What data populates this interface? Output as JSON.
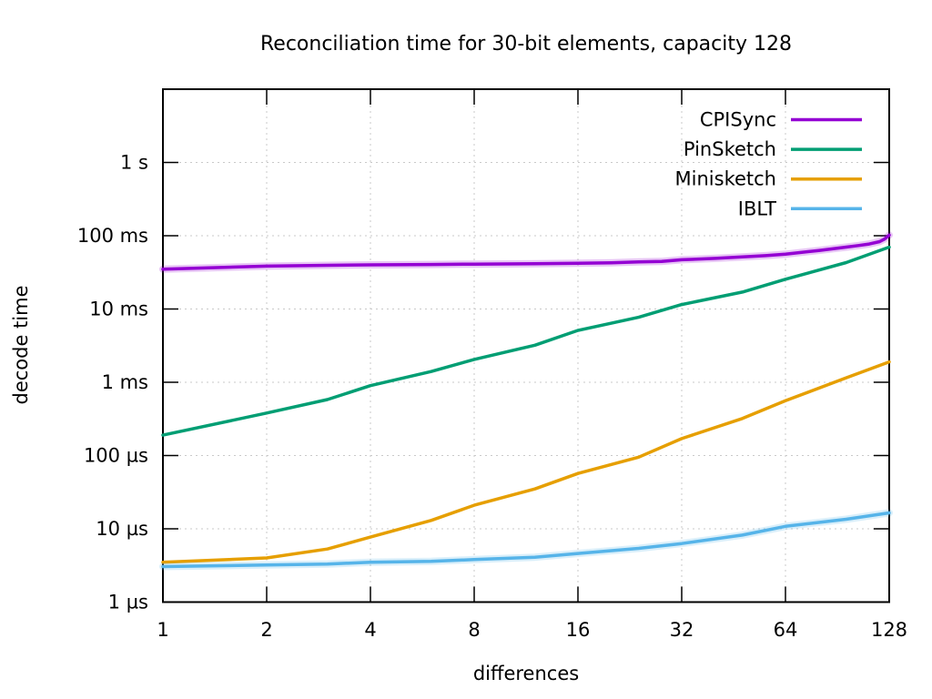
{
  "chart_data": {
    "type": "line",
    "title": "Reconciliation time for 30-bit elements, capacity 128",
    "xlabel": "differences",
    "ylabel": "decode time",
    "x_scale": "log2",
    "y_scale": "log10",
    "xlim": [
      1,
      128
    ],
    "ylim": [
      1e-06,
      10
    ],
    "grid": true,
    "legend_position": "inside-top-right",
    "background_color": "#ffffff",
    "grid_color": "#c9c9c9",
    "axis_color": "#000000",
    "x_ticks": [
      {
        "value": 1,
        "label": "1"
      },
      {
        "value": 2,
        "label": "2"
      },
      {
        "value": 4,
        "label": "4"
      },
      {
        "value": 8,
        "label": "8"
      },
      {
        "value": 16,
        "label": "16"
      },
      {
        "value": 32,
        "label": "32"
      },
      {
        "value": 64,
        "label": "64"
      },
      {
        "value": 128,
        "label": "128"
      }
    ],
    "y_ticks": [
      {
        "value": 1e-06,
        "label": "1 µs"
      },
      {
        "value": 1e-05,
        "label": "10 µs"
      },
      {
        "value": 0.0001,
        "label": "100 µs"
      },
      {
        "value": 0.001,
        "label": "1 ms"
      },
      {
        "value": 0.01,
        "label": "10 ms"
      },
      {
        "value": 0.1,
        "label": "100 ms"
      },
      {
        "value": 1,
        "label": "1 s"
      }
    ],
    "series": [
      {
        "name": "CPISync",
        "color": "#9400d3",
        "halo": true,
        "x": [
          1,
          2,
          3,
          4,
          6,
          8,
          12,
          16,
          20,
          24,
          28,
          32,
          40,
          48,
          56,
          64,
          80,
          96,
          104,
          112,
          120,
          124,
          128
        ],
        "y": [
          0.035,
          0.0385,
          0.0395,
          0.04,
          0.0405,
          0.041,
          0.0415,
          0.042,
          0.0428,
          0.044,
          0.0445,
          0.047,
          0.049,
          0.0515,
          0.0535,
          0.056,
          0.063,
          0.07,
          0.0735,
          0.077,
          0.083,
          0.09,
          0.102
        ]
      },
      {
        "name": "PinSketch",
        "color": "#009e73",
        "halo": false,
        "x": [
          1,
          2,
          3,
          4,
          6,
          8,
          12,
          16,
          24,
          32,
          48,
          64,
          96,
          128
        ],
        "y": [
          0.00019,
          0.00038,
          0.00058,
          0.0009,
          0.0014,
          0.00205,
          0.0032,
          0.0051,
          0.0077,
          0.0115,
          0.017,
          0.0255,
          0.043,
          0.07
        ]
      },
      {
        "name": "Minisketch",
        "color": "#e69f00",
        "halo": false,
        "x": [
          1,
          2,
          3,
          4,
          6,
          8,
          12,
          16,
          24,
          32,
          48,
          64,
          96,
          128
        ],
        "y": [
          3.5e-06,
          4e-06,
          5.3e-06,
          7.7e-06,
          1.3e-05,
          2.1e-05,
          3.5e-05,
          5.7e-05,
          9.5e-05,
          0.00017,
          0.00032,
          0.00056,
          0.00115,
          0.0019
        ]
      },
      {
        "name": "IBLT",
        "color": "#56b4e9",
        "halo": true,
        "x": [
          1,
          2,
          3,
          4,
          6,
          8,
          12,
          16,
          24,
          32,
          48,
          64,
          96,
          128
        ],
        "y": [
          3.05e-06,
          3.2e-06,
          3.3e-06,
          3.5e-06,
          3.6e-06,
          3.8e-06,
          4.1e-06,
          4.6e-06,
          5.4e-06,
          6.3e-06,
          8.2e-06,
          1.08e-05,
          1.35e-05,
          1.65e-05
        ]
      }
    ]
  }
}
